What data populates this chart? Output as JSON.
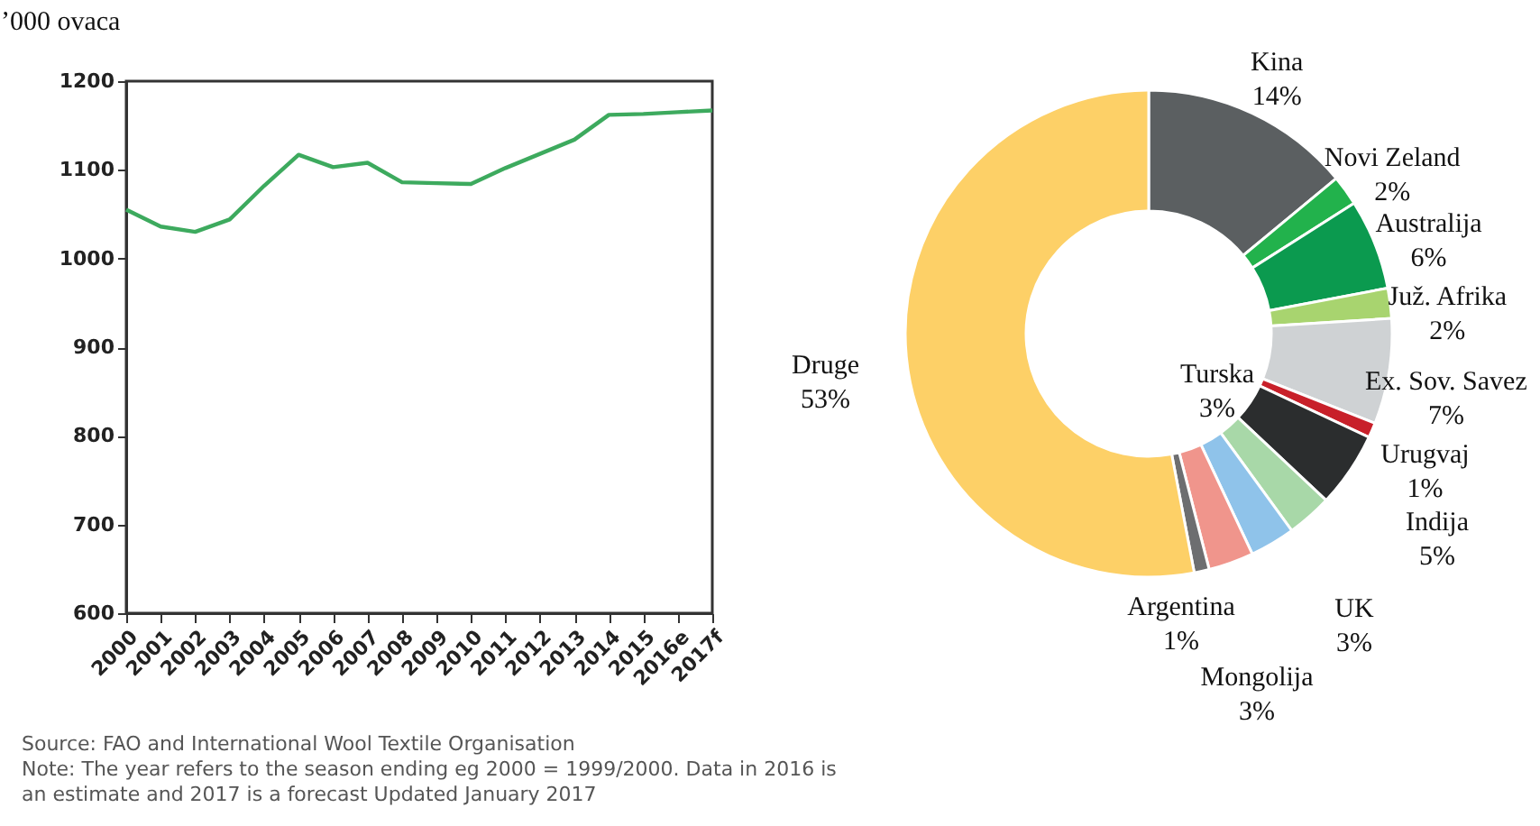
{
  "chart_data": [
    {
      "type": "line",
      "ylabel": "’000 ovaca",
      "categories": [
        "2000",
        "2001",
        "2002",
        "2003",
        "2004",
        "2005",
        "2006",
        "2007",
        "2008",
        "2009",
        "2010",
        "2011",
        "2012",
        "2013",
        "2014",
        "2015",
        "2016e",
        "2017f"
      ],
      "series": [
        {
          "color": "#3daa5e",
          "values": [
            1055,
            1036,
            1030,
            1044,
            1082,
            1117,
            1103,
            1108,
            1086,
            1085,
            1084,
            1102,
            1118,
            1134,
            1162,
            1163,
            1165,
            1167
          ]
        }
      ],
      "ylim": [
        600,
        1200
      ],
      "yticks": [
        600,
        700,
        800,
        900,
        1000,
        1100,
        1200
      ],
      "grid": false,
      "legend": false,
      "marker": "none",
      "line_style": "solid",
      "annotations": [
        "Source: FAO and International Wool Textile Organisation",
        "Note: The year refers to the season ending eg 2000 = 1999/2000. Data in 2016 is an estimate and 2017 is a forecast Updated January 2017"
      ]
    },
    {
      "type": "donut",
      "categories": [
        "Kina",
        "Novi Zeland",
        "Australija",
        "Juž. Afrika",
        "Ex. Sov. Savez",
        "Urugvaj",
        "Indija",
        "Turska",
        "UK",
        "Mongolija",
        "Argentina",
        "Druge"
      ],
      "values": [
        14,
        2,
        6,
        2,
        7,
        1,
        5,
        3,
        3,
        3,
        1,
        53
      ],
      "value_labels": [
        "14%",
        "2%",
        "6%",
        "2%",
        "7%",
        "1%",
        "5%",
        "3%",
        "3%",
        "3%",
        "1%",
        "53%"
      ],
      "colors": [
        "#5b5f61",
        "#22b24c",
        "#0b9a4f",
        "#a8d46f",
        "#cfd2d4",
        "#c8202a",
        "#2b2d2e",
        "#a8d8a8",
        "#8fc3ea",
        "#f0958c",
        "#6d6e70",
        "#fdd067"
      ],
      "legend": false
    }
  ]
}
